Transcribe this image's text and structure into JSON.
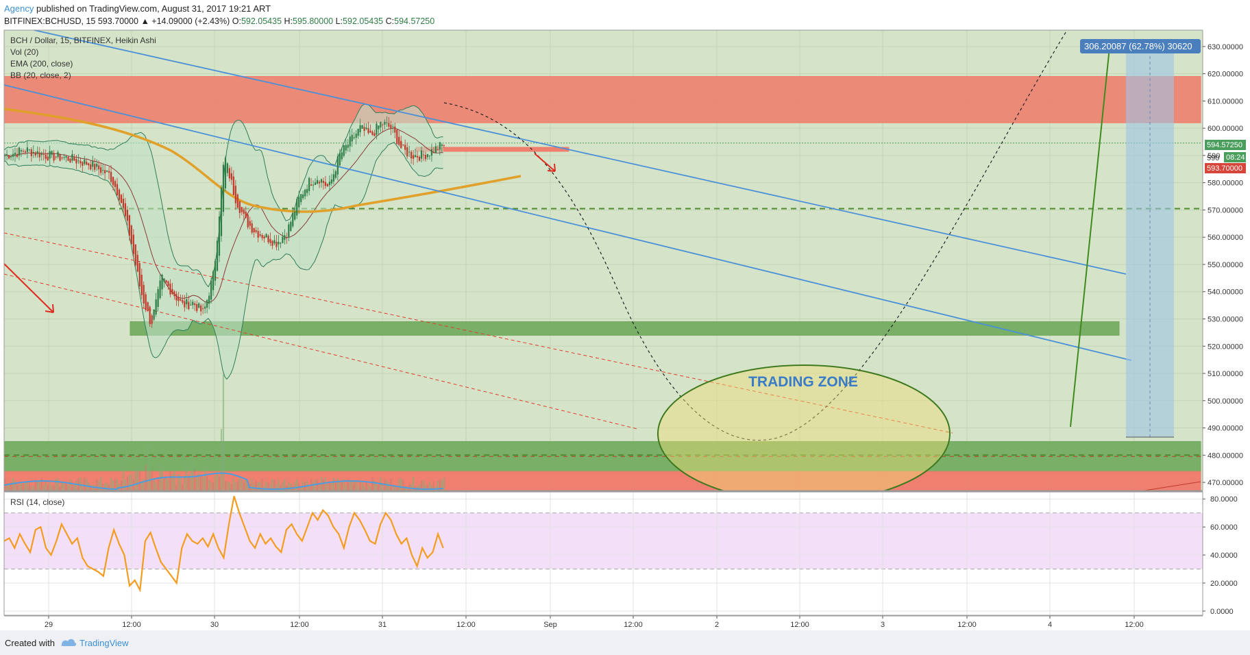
{
  "header": {
    "author": "Agency",
    "published_text": "published on TradingView.com, August 31, 2017 19:21 ART",
    "symbol_line": "BITFINEX:BCHUSD, 15",
    "last": "593.70000",
    "change": "▲ +14.09000 (+2.43%)",
    "ohlc": [
      {
        "label": "O:",
        "value": "592.05435"
      },
      {
        "label": "H:",
        "value": "595.80000"
      },
      {
        "label": "L:",
        "value": "592.05435"
      },
      {
        "label": "C:",
        "value": "594.57250"
      }
    ]
  },
  "legend": [
    "BCH / Dollar, 15, BITFINEX, Heikin Ashi",
    "Vol (20)",
    "EMA (200, close)",
    "BB (20, close, 2)"
  ],
  "rsi_label": "RSI (14, close)",
  "annotation": {
    "text": "TRADING ZONE"
  },
  "measure": {
    "text": "306.20087 (62.78%) 30620"
  },
  "price_tags": {
    "last": "594.57250",
    "mid": "590",
    "countdown": "08:24",
    "close": "593.70000"
  },
  "footer": {
    "created": "Created with",
    "brand": "TradingView"
  },
  "colors": {
    "bg_main": "#d5e3c8",
    "bg_rsi": "#f3e0f8",
    "resistance": "#f07a6a",
    "support": "#6fa85c",
    "ema": "#e0a02a",
    "trendline": "#4a90d9",
    "rsi_line": "#f39c1f",
    "up": "#2e7d46",
    "down": "#c0392b",
    "accent": "#3a8fd6"
  },
  "chart_data": {
    "type": "candlestick",
    "ylim": [
      467,
      636
    ],
    "y_ticks": [
      630,
      620,
      610,
      600,
      590,
      580,
      570,
      560,
      550,
      540,
      530,
      520,
      510,
      500,
      490,
      480,
      470
    ],
    "y_tick_labels": [
      "630.00000",
      "620.00000",
      "610.00000",
      "600.00000",
      "590",
      "580.00000",
      "570.00000",
      "560.00000",
      "550.00000",
      "540.00000",
      "530.00000",
      "520.00000",
      "510.00000",
      "500.00000",
      "490.00000",
      "480.00000",
      "470.00000"
    ],
    "x_labels": [
      "29",
      "12:00",
      "30",
      "12:00",
      "31",
      "12:00",
      "Sep",
      "12:00",
      "2",
      "12:00",
      "3",
      "12:00",
      "4",
      "12:00"
    ],
    "price_path": [
      [
        0,
        590
      ],
      [
        4,
        592
      ],
      [
        8,
        590
      ],
      [
        12,
        589
      ],
      [
        16,
        587
      ],
      [
        20,
        583
      ],
      [
        22,
        575
      ],
      [
        24,
        560
      ],
      [
        26,
        540
      ],
      [
        28,
        528
      ],
      [
        30,
        545
      ],
      [
        32,
        540
      ],
      [
        34,
        535
      ],
      [
        36,
        536
      ],
      [
        38,
        532
      ],
      [
        40,
        547
      ],
      [
        42,
        590
      ],
      [
        44,
        575
      ],
      [
        46,
        566
      ],
      [
        48,
        562
      ],
      [
        50,
        560
      ],
      [
        52,
        558
      ],
      [
        54,
        562
      ],
      [
        56,
        573
      ],
      [
        58,
        580
      ],
      [
        60,
        582
      ],
      [
        62,
        578
      ],
      [
        64,
        590
      ],
      [
        66,
        595
      ],
      [
        68,
        600
      ],
      [
        70,
        597
      ],
      [
        72,
        602
      ],
      [
        74,
        600
      ],
      [
        76,
        592
      ],
      [
        78,
        590
      ],
      [
        80,
        590
      ],
      [
        82,
        592
      ],
      [
        84,
        594
      ]
    ],
    "rsi": {
      "ylim": [
        -3,
        85
      ],
      "levels": [
        70,
        30
      ],
      "y_ticks": [
        80,
        60,
        40,
        20,
        0
      ],
      "y_tick_labels": [
        "80.0000",
        "60.0000",
        "40.0000",
        "20.0000",
        "0.0000"
      ],
      "values": [
        50,
        52,
        45,
        55,
        48,
        42,
        58,
        60,
        45,
        40,
        50,
        62,
        55,
        48,
        52,
        38,
        32,
        30,
        28,
        25,
        45,
        58,
        48,
        40,
        18,
        22,
        15,
        50,
        56,
        45,
        35,
        30,
        25,
        20,
        45,
        55,
        50,
        48,
        52,
        46,
        55,
        45,
        38,
        62,
        82,
        70,
        60,
        50,
        45,
        55,
        48,
        52,
        46,
        42,
        58,
        62,
        55,
        50,
        60,
        70,
        65,
        72,
        68,
        60,
        55,
        45,
        60,
        70,
        65,
        58,
        50,
        48,
        62,
        70,
        65,
        55,
        48,
        52,
        40,
        32,
        45,
        38,
        42,
        55,
        45
      ]
    }
  },
  "zones": {
    "resistance_top": [
      602,
      619
    ],
    "resistance_small": [
      591.5,
      593
    ],
    "support_mid": [
      524,
      529
    ],
    "support_low": [
      474,
      485
    ],
    "resistance_bottom": [
      466,
      474
    ]
  }
}
